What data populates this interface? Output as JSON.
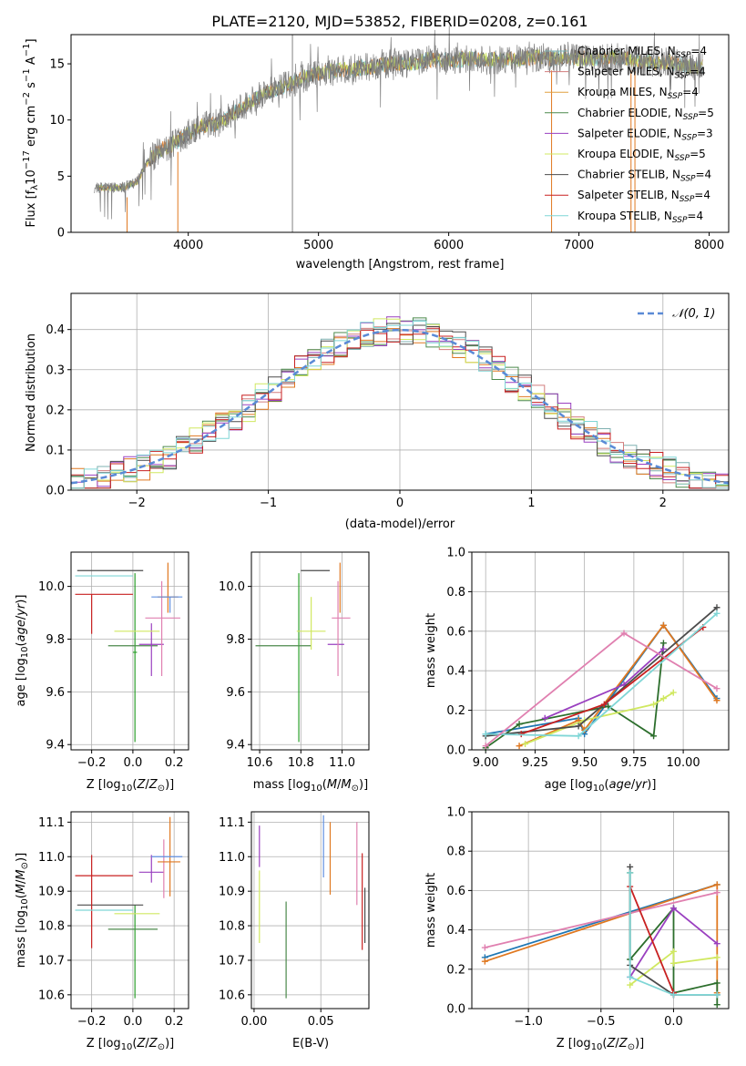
{
  "chart_data": [
    {
      "id": "spectrum",
      "type": "line",
      "title": "PLATE=2120, MJD=53852, FIBERID=0208, z=0.161",
      "xlabel": "wavelength [Angstrom, rest frame]",
      "ylabel": "Flux [f$_\\lambda$10$^{-17}$ erg cm$^{-2}$ s$^{-1}$ A$^{-1}$]",
      "xlim": [
        3100,
        8150
      ],
      "ylim": [
        0,
        17.6
      ],
      "xticks": [
        4000,
        5000,
        6000,
        7000,
        8000
      ],
      "yticks": [
        0,
        5,
        10,
        15
      ],
      "legend": "top-right",
      "legend_entries": [
        {
          "label": "Chabrier MILES, N",
          "sub": "SSP",
          "tail": "=4"
        },
        {
          "label": "Salpeter MILES, N",
          "sub": "SSP",
          "tail": "=4"
        },
        {
          "label": "Kroupa MILES, N",
          "sub": "SSP",
          "tail": "=4"
        },
        {
          "label": "Chabrier ELODIE, N",
          "sub": "SSP",
          "tail": "=5"
        },
        {
          "label": "Salpeter ELODIE, N",
          "sub": "SSP",
          "tail": "=3"
        },
        {
          "label": "Kroupa ELODIE, N",
          "sub": "SSP",
          "tail": "=5"
        },
        {
          "label": "Chabrier STELIB, N",
          "sub": "SSP",
          "tail": "=4"
        },
        {
          "label": "Salpeter STELIB, N",
          "sub": "SSP",
          "tail": "=4"
        },
        {
          "label": "Kroupa STELIB, N",
          "sub": "SSP",
          "tail": "=4"
        }
      ],
      "data_color": "#808080",
      "model_color": "#7fd6d6",
      "data_approx": {
        "wavelength": [
          3280,
          3400,
          3500,
          3600,
          3700,
          3800,
          3900,
          4000,
          4100,
          4200,
          4300,
          4400,
          4500,
          4600,
          4700,
          4800,
          4900,
          5000,
          5100,
          5200,
          5300,
          5400,
          5500,
          5600,
          5700,
          5800,
          5900,
          6000,
          6100,
          6200,
          6300,
          6400,
          6500,
          6600,
          6700,
          6800,
          6900,
          7000,
          7100,
          7200,
          7300,
          7400,
          7500,
          7600,
          7700,
          7800,
          7900
        ],
        "flux": [
          3.9,
          4.0,
          4.0,
          4.4,
          6.5,
          7.4,
          8.0,
          8.8,
          9.5,
          9.6,
          10.2,
          11.0,
          11.8,
          12.4,
          12.9,
          13.3,
          13.8,
          14.2,
          14.3,
          14.5,
          14.6,
          14.7,
          14.9,
          15.1,
          15.0,
          15.3,
          15.4,
          15.3,
          15.4,
          15.5,
          15.3,
          15.4,
          15.4,
          15.5,
          15.6,
          15.4,
          15.7,
          15.5,
          15.4,
          15.5,
          15.6,
          15.4,
          15.2,
          15.1,
          15.2,
          14.8,
          14.7
        ]
      },
      "absorption_lines": [
        3530,
        3920,
        6790,
        7400,
        7430
      ],
      "vertical_marker": 4800
    },
    {
      "id": "residuals",
      "type": "step",
      "title": "",
      "xlabel": "(data-model)/error",
      "ylabel": "Normed distribution",
      "xlim": [
        -2.5,
        2.5
      ],
      "ylim": [
        0,
        0.49
      ],
      "xticks": [
        -2,
        -1,
        0,
        1,
        2
      ],
      "yticks": [
        0.0,
        0.1,
        0.2,
        0.3,
        0.4
      ],
      "legend": "top-right",
      "reference_label": "𝒩(0, 1)",
      "bin_width": 0.1
    },
    {
      "id": "age-vs-Z",
      "type": "errorbar",
      "xlabel": "Z [log$_{10}$(Z/Z$_\\odot$)]",
      "ylabel": "age  [log$_{10}$(age/yr)]",
      "xlim": [
        -0.3,
        0.27
      ],
      "ylim": [
        9.38,
        10.13
      ],
      "xticks": [
        -0.2,
        0.0,
        0.2
      ],
      "yticks": [
        9.4,
        9.6,
        9.8,
        10.0
      ],
      "points": [
        {
          "color": "#2ca02c",
          "x": 0.01,
          "y": 9.75,
          "xe": [
            0.01,
            0.01
          ],
          "ye": [
            0.34,
            0.3
          ]
        },
        {
          "color": "#4c4c4c",
          "x": -0.05,
          "y": 10.06,
          "xe": [
            0.22,
            0.1
          ],
          "ye": [
            0.0,
            0.0
          ]
        },
        {
          "color": "#c82020",
          "x": -0.2,
          "y": 9.97,
          "xe": [
            0.08,
            0.2
          ],
          "ye": [
            0.15,
            0.0
          ]
        },
        {
          "color": "#4c8a4c",
          "x": 0.05,
          "y": 9.775,
          "xe": [
            0.17,
            0.07
          ],
          "ye": [
            0.0,
            0.0
          ]
        },
        {
          "color": "#9a40c0",
          "x": 0.09,
          "y": 9.78,
          "xe": [
            0.06,
            0.06
          ],
          "ye": [
            0.12,
            0.08
          ]
        },
        {
          "color": "#d0e860",
          "x": 0.02,
          "y": 9.83,
          "xe": [
            0.11,
            0.11
          ],
          "ye": [
            0.0,
            0.0
          ]
        },
        {
          "color": "#e080b0",
          "x": 0.14,
          "y": 9.88,
          "xe": [
            0.08,
            0.09
          ],
          "ye": [
            0.22,
            0.14
          ]
        },
        {
          "color": "#e07820",
          "x": 0.17,
          "y": 9.96,
          "xe": [
            0.05,
            0.05
          ],
          "ye": [
            0.06,
            0.13
          ]
        },
        {
          "color": "#6090e0",
          "x": 0.18,
          "y": 9.96,
          "xe": [
            0.09,
            0.06
          ],
          "ye": [
            0.06,
            0.0
          ]
        },
        {
          "color": "#7fd6d6",
          "x": -0.1,
          "y": 10.04,
          "xe": [
            0.18,
            0.1
          ],
          "ye": [
            0.0,
            0.0
          ]
        }
      ]
    },
    {
      "id": "age-vs-mass",
      "type": "errorbar",
      "xlabel": "mass [log$_{10}$(M/M$_\\odot$)]",
      "ylabel": "",
      "xlim": [
        10.56,
        11.13
      ],
      "ylim": [
        9.38,
        10.13
      ],
      "xticks": [
        10.6,
        10.8,
        11.0
      ],
      "yticks": [
        9.4,
        9.6,
        9.8,
        10.0
      ],
      "points": [
        {
          "color": "#2ca02c",
          "x": 10.79,
          "y": 9.75,
          "xe": [
            0.0,
            0.0
          ],
          "ye": [
            0.34,
            0.3
          ]
        },
        {
          "color": "#4c4c4c",
          "x": 10.86,
          "y": 10.06,
          "xe": [
            0.06,
            0.08
          ],
          "ye": [
            0.0,
            0.0
          ]
        },
        {
          "color": "#c82020",
          "x": 10.97,
          "y": 9.97,
          "xe": [
            0.0,
            0.0
          ],
          "ye": [
            0.0,
            0.0
          ]
        },
        {
          "color": "#4c8a4c",
          "x": 10.78,
          "y": 9.775,
          "xe": [
            0.2,
            0.07
          ],
          "ye": [
            0.0,
            0.0
          ]
        },
        {
          "color": "#9a40c0",
          "x": 10.96,
          "y": 9.78,
          "xe": [
            0.03,
            0.05
          ],
          "ye": [
            0.0,
            0.0
          ]
        },
        {
          "color": "#d0e860",
          "x": 10.85,
          "y": 9.83,
          "xe": [
            0.07,
            0.07
          ],
          "ye": [
            0.07,
            0.13
          ]
        },
        {
          "color": "#e080b0",
          "x": 10.98,
          "y": 9.88,
          "xe": [
            0.03,
            0.06
          ],
          "ye": [
            0.22,
            0.14
          ]
        },
        {
          "color": "#e07820",
          "x": 10.99,
          "y": 9.96,
          "xe": [
            0.0,
            0.0
          ],
          "ye": [
            0.06,
            0.13
          ]
        },
        {
          "color": "#6090e0",
          "x": 11.0,
          "y": 9.96,
          "xe": [
            0.0,
            0.0
          ],
          "ye": [
            0.0,
            0.0
          ]
        },
        {
          "color": "#7fd6d6",
          "x": 10.87,
          "y": 10.04,
          "xe": [
            0.0,
            0.0
          ],
          "ye": [
            0.0,
            0.0
          ]
        }
      ]
    },
    {
      "id": "weight-vs-age",
      "type": "line",
      "xlabel": "age  [log$_{10}$(age/yr)]",
      "ylabel": "mass weight",
      "xlim": [
        8.93,
        10.23
      ],
      "ylim": [
        0.0,
        1.0
      ],
      "xticks": [
        9.0,
        9.25,
        9.5,
        9.75,
        10.0
      ],
      "yticks": [
        0.0,
        0.2,
        0.4,
        0.6,
        0.8,
        1.0
      ],
      "series": [
        {
          "color": "#1f77b4",
          "x": [
            9.0,
            9.47,
            9.5,
            9.9,
            10.17
          ],
          "y": [
            0.08,
            0.16,
            0.08,
            0.63,
            0.26
          ]
        },
        {
          "color": "#e07820",
          "x": [
            9.17,
            9.47,
            9.5,
            9.9,
            10.17
          ],
          "y": [
            0.02,
            0.15,
            0.1,
            0.63,
            0.25
          ]
        },
        {
          "color": "#2c6e2c",
          "x": [
            9.0,
            9.17,
            9.62,
            9.85,
            9.9
          ],
          "y": [
            0.01,
            0.13,
            0.22,
            0.07,
            0.54
          ]
        },
        {
          "color": "#9a40c0",
          "x": [
            9.3,
            9.7,
            9.9
          ],
          "y": [
            0.16,
            0.33,
            0.51
          ]
        },
        {
          "color": "#d0e860",
          "x": [
            9.2,
            9.5,
            9.85,
            9.9,
            9.95
          ],
          "y": [
            0.03,
            0.15,
            0.23,
            0.26,
            0.29
          ]
        },
        {
          "color": "#4c4c4c",
          "x": [
            9.0,
            9.47,
            10.17
          ],
          "y": [
            0.07,
            0.12,
            0.72
          ]
        },
        {
          "color": "#c82020",
          "x": [
            9.18,
            9.6,
            10.1
          ],
          "y": [
            0.08,
            0.23,
            0.62
          ]
        },
        {
          "color": "#7fd6d6",
          "x": [
            9.0,
            9.47,
            10.17
          ],
          "y": [
            0.08,
            0.07,
            0.69
          ]
        },
        {
          "color": "#e080b0",
          "x": [
            9.0,
            9.7,
            10.17
          ],
          "y": [
            0.02,
            0.59,
            0.31
          ]
        }
      ]
    },
    {
      "id": "mass-vs-Z",
      "type": "errorbar",
      "xlabel": "Z [log$_{10}$(Z/Z$_\\odot$)]",
      "ylabel": "mass [log$_{10}$(M/M$_\\odot$)]",
      "xlim": [
        -0.3,
        0.27
      ],
      "ylim": [
        10.56,
        11.13
      ],
      "xticks": [
        -0.2,
        0.0,
        0.2
      ],
      "yticks": [
        10.6,
        10.7,
        10.8,
        10.9,
        11.0,
        11.1
      ],
      "points": [
        {
          "color": "#2ca02c",
          "x": 0.01,
          "y": 10.79,
          "xe": [
            0.0,
            0.0
          ],
          "ye": [
            0.2,
            0.07
          ]
        },
        {
          "color": "#4c4c4c",
          "x": -0.05,
          "y": 10.86,
          "xe": [
            0.22,
            0.1
          ],
          "ye": [
            0.0,
            0.0
          ]
        },
        {
          "color": "#c82020",
          "x": -0.2,
          "y": 10.945,
          "xe": [
            0.08,
            0.2
          ],
          "ye": [
            0.21,
            0.06
          ]
        },
        {
          "color": "#4c8a4c",
          "x": 0.05,
          "y": 10.79,
          "xe": [
            0.17,
            0.07
          ],
          "ye": [
            0.0,
            0.0
          ]
        },
        {
          "color": "#9a40c0",
          "x": 0.09,
          "y": 10.955,
          "xe": [
            0.06,
            0.06
          ],
          "ye": [
            0.03,
            0.05
          ]
        },
        {
          "color": "#d0e860",
          "x": 0.02,
          "y": 10.835,
          "xe": [
            0.11,
            0.11
          ],
          "ye": [
            0.0,
            0.0
          ]
        },
        {
          "color": "#e080b0",
          "x": 0.15,
          "y": 10.98,
          "xe": [
            0.0,
            0.0
          ],
          "ye": [
            0.1,
            0.07
          ]
        },
        {
          "color": "#e07820",
          "x": 0.18,
          "y": 10.985,
          "xe": [
            0.06,
            0.05
          ],
          "ye": [
            0.1,
            0.13
          ]
        },
        {
          "color": "#6090e0",
          "x": 0.18,
          "y": 11.0,
          "xe": [
            0.09,
            0.06
          ],
          "ye": [
            0.0,
            0.0
          ]
        },
        {
          "color": "#7fd6d6",
          "x": -0.1,
          "y": 10.845,
          "xe": [
            0.18,
            0.1
          ],
          "ye": [
            0.0,
            0.0
          ]
        }
      ]
    },
    {
      "id": "mass-vs-ebv",
      "type": "errorbar",
      "xlabel": "E(B-V)",
      "ylabel": "",
      "xlim": [
        -0.002,
        0.086
      ],
      "ylim": [
        10.56,
        11.13
      ],
      "xticks": [
        0.0,
        0.05
      ],
      "tick_labels": [
        "0.00",
        "0.05"
      ],
      "yticks": [
        10.6,
        10.7,
        10.8,
        10.9,
        11.0,
        11.1
      ],
      "points": [
        {
          "color": "#9a40c0",
          "x": 0.004,
          "y": 11.0,
          "xe": [
            0.0,
            0.0
          ],
          "ye": [
            0.03,
            0.09
          ]
        },
        {
          "color": "#d0e860",
          "x": 0.004,
          "y": 10.85,
          "xe": [
            0.0,
            0.0
          ],
          "ye": [
            0.1,
            0.11
          ]
        },
        {
          "color": "#4c8a4c",
          "x": 0.024,
          "y": 10.76,
          "xe": [
            0.0,
            0.0
          ],
          "ye": [
            0.17,
            0.11
          ]
        },
        {
          "color": "#6090e0",
          "x": 0.052,
          "y": 11.0,
          "xe": [
            0.0,
            0.0
          ],
          "ye": [
            0.06,
            0.12
          ]
        },
        {
          "color": "#e07820",
          "x": 0.057,
          "y": 10.99,
          "xe": [
            0.0,
            0.0
          ],
          "ye": [
            0.1,
            0.11
          ]
        },
        {
          "color": "#e080b0",
          "x": 0.077,
          "y": 10.98,
          "xe": [
            0.0,
            0.0
          ],
          "ye": [
            0.12,
            0.12
          ]
        },
        {
          "color": "#c82020",
          "x": 0.081,
          "y": 10.87,
          "xe": [
            0.0,
            0.0
          ],
          "ye": [
            0.14,
            0.14
          ]
        },
        {
          "color": "#4c4c4c",
          "x": 0.083,
          "y": 10.85,
          "xe": [
            0.0,
            0.0
          ],
          "ye": [
            0.1,
            0.06
          ]
        }
      ]
    },
    {
      "id": "weight-vs-Z",
      "type": "line",
      "xlabel": "Z [log$_{10}$(Z/Z$_\\odot$)]",
      "ylabel": "mass weight",
      "xlim": [
        -1.39,
        0.38
      ],
      "ylim": [
        0.0,
        1.0
      ],
      "xticks": [
        -1.0,
        -0.5,
        0.0
      ],
      "yticks": [
        0.0,
        0.2,
        0.4,
        0.6,
        0.8,
        1.0
      ],
      "series": [
        {
          "color": "#1f77b4",
          "x": [
            -1.3,
            0.3
          ],
          "y": [
            0.26,
            0.63
          ]
        },
        {
          "color": "#e07820",
          "x": [
            -1.3,
            0.3,
            0.3
          ],
          "y": [
            0.24,
            0.63,
            0.08
          ]
        },
        {
          "color": "#e080b0",
          "x": [
            -1.3,
            0.3
          ],
          "y": [
            0.31,
            0.59
          ]
        },
        {
          "color": "#2c6e2c",
          "x": [
            -0.3,
            -0.3,
            0.0,
            0.0,
            0.3,
            0.3
          ],
          "y": [
            0.69,
            0.25,
            0.51,
            0.08,
            0.13,
            0.02
          ]
        },
        {
          "color": "#9a40c0",
          "x": [
            -0.3,
            0.0,
            0.3
          ],
          "y": [
            0.16,
            0.51,
            0.33
          ]
        },
        {
          "color": "#d0e860",
          "x": [
            -0.3,
            0.0,
            0.0,
            0.3
          ],
          "y": [
            0.12,
            0.29,
            0.23,
            0.26
          ]
        },
        {
          "color": "#4c4c4c",
          "x": [
            -0.3,
            -0.3,
            0.0,
            0.3
          ],
          "y": [
            0.72,
            0.22,
            0.07,
            0.07
          ]
        },
        {
          "color": "#c82020",
          "x": [
            -0.3,
            0.0,
            0.0
          ],
          "y": [
            0.62,
            0.08,
            0.07
          ]
        },
        {
          "color": "#7fd6d6",
          "x": [
            -0.3,
            -0.3,
            0.0,
            0.3
          ],
          "y": [
            0.69,
            0.16,
            0.07,
            0.07
          ]
        }
      ]
    }
  ]
}
